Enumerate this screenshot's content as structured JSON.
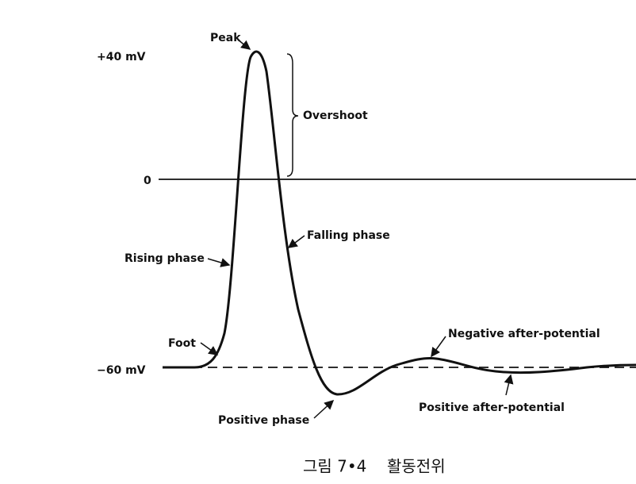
{
  "axis_labels": {
    "top": "+40 mV",
    "zero": "0",
    "bottom": "−60 mV"
  },
  "annotations": {
    "peak": "Peak",
    "overshoot": "Overshoot",
    "rising_phase": "Rising phase",
    "falling_phase": "Falling phase",
    "foot": "Foot",
    "negative_after_potential": "Negative after-potential",
    "positive_after_potential": "Positive after-potential",
    "positive_phase": "Positive phase"
  },
  "caption": {
    "number": "그림 7•4",
    "title": "활동전위"
  }
}
